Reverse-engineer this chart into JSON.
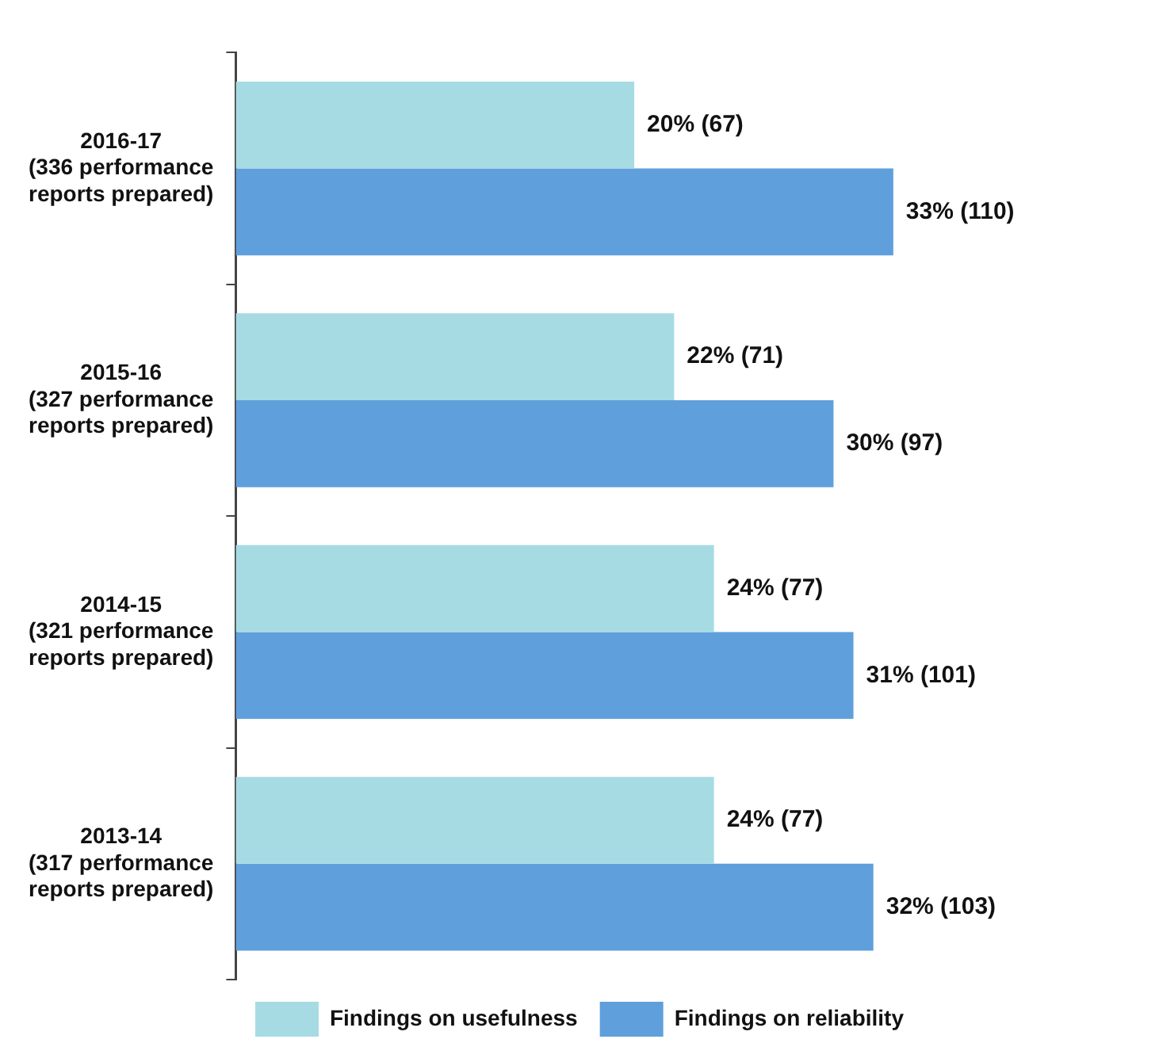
{
  "chart_data": {
    "type": "bar",
    "orientation": "horizontal",
    "categories": [
      "2016-17\n(336 performance\nreports prepared)",
      "2015-16\n(327 performance\nreports prepared)",
      "2014-15\n(321 performance\nreports prepared)",
      "2013-14\n(317 performance\nreports prepared)"
    ],
    "series": [
      {
        "name": "Findings on usefulness",
        "color": "#a6dbe4",
        "values": [
          20,
          22,
          24,
          24
        ],
        "value_labels": [
          "20% (67)",
          "22% (71)",
          "24% (77)",
          "24% (77)"
        ]
      },
      {
        "name": "Findings on reliability",
        "color": "#5f9fdc",
        "values": [
          33,
          30,
          31,
          32
        ],
        "value_labels": [
          "33% (110)",
          "30% (97)",
          "31% (101)",
          "32% (103)"
        ]
      }
    ],
    "legend": "bottom",
    "grid": false
  }
}
